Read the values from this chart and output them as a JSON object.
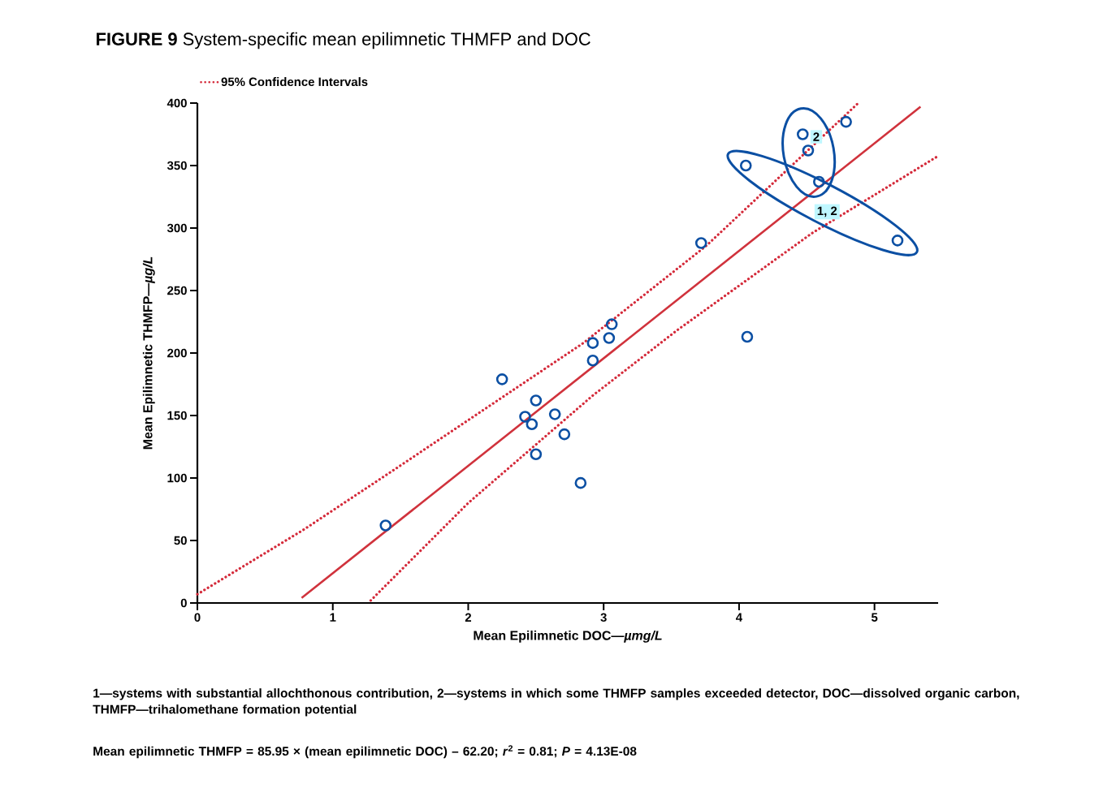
{
  "chart_data": {
    "type": "scatter",
    "title": "**FIGURE 9**   System-specific mean epilimnetic THMFP and DOC",
    "xlabel": "Mean Epilimnetic DOC—*µmg/L*",
    "ylabel": "Mean Epilimnetic THMFP—*µg/L*",
    "xlim": [
      0,
      5.47
    ],
    "ylim": [
      0,
      400
    ],
    "xticks": [
      0,
      1,
      2,
      3,
      4,
      5
    ],
    "yticks": [
      0,
      50,
      100,
      150,
      200,
      250,
      300,
      350,
      400
    ],
    "grid": false,
    "legend": "top left",
    "series": [
      {
        "color": "#0b4fa3",
        "marker": "circle",
        "x": [
          1.39,
          2.25,
          2.5,
          2.42,
          2.47,
          2.64,
          2.5,
          2.71,
          2.83,
          2.92,
          2.92,
          3.04,
          3.06,
          3.72,
          4.05,
          4.06,
          4.47,
          4.51,
          4.59,
          4.79,
          5.17
        ],
        "values": [
          62,
          179,
          162,
          149,
          143,
          151,
          119,
          135,
          96,
          194,
          208,
          212,
          223,
          288,
          350,
          213,
          375,
          362,
          337,
          385,
          290
        ]
      },
      {
        "type": "line",
        "color": "#d0323c",
        "line_style": "solid",
        "x": [
          0.77,
          5.34
        ],
        "values": [
          4,
          397
        ]
      },
      {
        "type": "line",
        "name": "95% Confidence Intervals",
        "color": "#d42a3a",
        "line_style": "dotted",
        "x": [
          0,
          0.79,
          1.5,
          2.85,
          3.76,
          4.88
        ],
        "values": [
          7,
          59,
          110,
          208,
          286,
          400
        ]
      },
      {
        "type": "line",
        "color": "#d42a3a",
        "line_style": "dotted",
        "x": [
          1.28,
          2.0,
          2.92,
          3.54,
          4.54,
          5.46
        ],
        "values": [
          2,
          80,
          166,
          218,
          296,
          357
        ]
      }
    ],
    "annotations": [
      {
        "text": "2",
        "x": 4.57,
        "y": 373
      },
      {
        "text": "1, 2",
        "x": 4.65,
        "y": 313
      },
      "1—systems with substantial allochthonous contribution, 2—systems in which some THMFP samples exceeded detector, DOC—dissolved organic carbon, THMFP—trihalomethane formation potential",
      "Mean epilimnetic THMFP = 85.95 × (mean epilimnetic DOC) – 62.20; *r*$^{2}$ = 0.81; *P* = 4.13E-08"
    ]
  }
}
